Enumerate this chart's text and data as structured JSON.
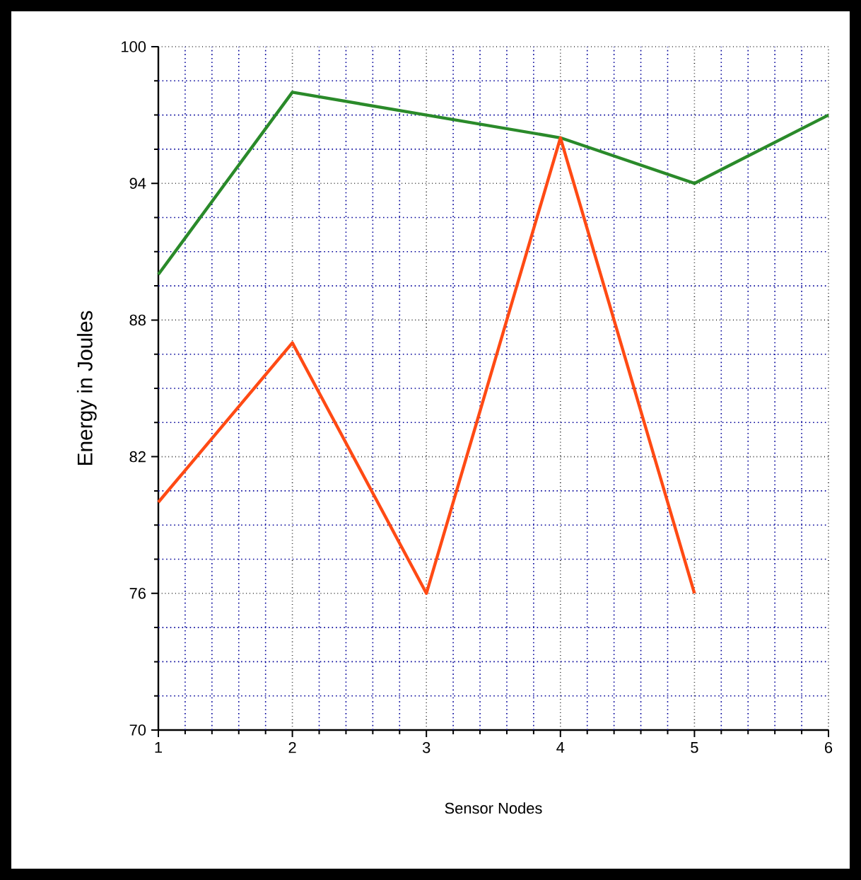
{
  "chart_data": {
    "type": "line",
    "xlabel": "Sensor Nodes",
    "ylabel": "Energy in Joules",
    "xlim": [
      1,
      6
    ],
    "xticks": [
      1,
      {
        "value": 1.2,
        "label": null
      },
      {
        "value": 1.4,
        "label": null
      },
      {
        "value": 1.6,
        "label": null
      },
      {
        "value": 1.8,
        "label": null
      },
      2,
      {
        "value": 2.2,
        "label": null
      },
      {
        "value": 2.4,
        "label": null
      },
      {
        "value": 2.6,
        "label": null
      },
      {
        "value": 2.8,
        "label": null
      },
      3,
      {
        "value": 3.2,
        "label": null
      },
      {
        "value": 3.4,
        "label": null
      },
      {
        "value": 3.6,
        "label": null
      },
      {
        "value": 3.8,
        "label": null
      },
      4,
      {
        "value": 4.2,
        "label": null
      },
      {
        "value": 4.4,
        "label": null
      },
      {
        "value": 4.6,
        "label": null
      },
      {
        "value": 4.8,
        "label": null
      },
      5,
      {
        "value": 5.2,
        "label": null
      },
      {
        "value": 5.4,
        "label": null
      },
      {
        "value": 5.6,
        "label": null
      },
      {
        "value": 5.8,
        "label": null
      },
      6
    ],
    "ylim": [
      70,
      100
    ],
    "yticks": [
      70,
      {
        "value": 71.5,
        "label": null
      },
      {
        "value": 73,
        "label": null
      },
      {
        "value": 74.5,
        "label": null
      },
      76,
      {
        "value": 77.5,
        "label": null
      },
      {
        "value": 79,
        "label": null
      },
      {
        "value": 80.5,
        "label": null
      },
      82,
      {
        "value": 83.5,
        "label": null
      },
      {
        "value": 85,
        "label": null
      },
      {
        "value": 86.5,
        "label": null
      },
      88,
      {
        "value": 89.5,
        "label": null
      },
      {
        "value": 91,
        "label": null
      },
      {
        "value": 92.5,
        "label": null
      },
      94,
      {
        "value": 95.5,
        "label": null
      },
      {
        "value": 97,
        "label": null
      },
      {
        "value": 98.5,
        "label": null
      },
      100
    ],
    "grid": true,
    "series": [
      {
        "color": "#2a8a2a",
        "x": [
          1,
          2,
          3,
          4,
          5,
          6
        ],
        "values": [
          90,
          98,
          97,
          96,
          94,
          97
        ]
      },
      {
        "color": "#ff4a14",
        "x": [
          1,
          2,
          3,
          4,
          5
        ],
        "values": [
          80,
          87,
          76,
          96,
          76
        ]
      }
    ]
  }
}
